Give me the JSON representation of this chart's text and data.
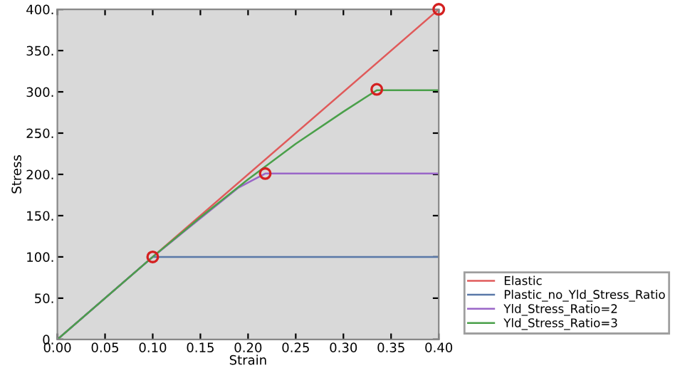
{
  "chart_data": {
    "type": "line",
    "xlabel": "Strain",
    "ylabel": "Stress",
    "series": [
      {
        "name": "Elastic",
        "color": "#e05a5a",
        "x": [
          0,
          0.4
        ],
        "values": [
          0,
          400
        ]
      },
      {
        "name": "Plastic_no_Yld_Stress_Ratio",
        "color": "#5a78a8",
        "x": [
          0,
          0.1,
          0.4
        ],
        "values": [
          0,
          100,
          100
        ]
      },
      {
        "name": "Yld_Stress_Ratio=2",
        "color": "#9a66c8",
        "x": [
          0,
          0.1,
          0.19,
          0.218,
          0.4
        ],
        "values": [
          0,
          100,
          184,
          201,
          201
        ]
      },
      {
        "name": "Yld_Stress_Ratio=3",
        "color": "#4aa04a",
        "x": [
          0,
          0.1,
          0.15,
          0.2,
          0.25,
          0.3,
          0.335,
          0.4
        ],
        "values": [
          0,
          100,
          148,
          194,
          237,
          276,
          302,
          302
        ]
      },
      {
        "type": "scatter",
        "marker": "circle",
        "color": "#d42020",
        "x": [
          0.1,
          0.218,
          0.335,
          0.4
        ],
        "values": [
          100,
          201,
          303,
          400
        ]
      }
    ],
    "xlim": [
      0,
      0.4
    ],
    "ylim": [
      0,
      400
    ],
    "xticks": [
      {
        "value": 0,
        "label": "0.00"
      },
      {
        "value": 0.05,
        "label": "0.05"
      },
      {
        "value": 0.1,
        "label": "0.10"
      },
      {
        "value": 0.15,
        "label": "0.15"
      },
      {
        "value": 0.2,
        "label": "0.20"
      },
      {
        "value": 0.25,
        "label": "0.25"
      },
      {
        "value": 0.3,
        "label": "0.30"
      },
      {
        "value": 0.35,
        "label": "0.35"
      },
      {
        "value": 0.4,
        "label": "0.40"
      }
    ],
    "yticks": [
      {
        "value": 0,
        "label": "0."
      },
      {
        "value": 50,
        "label": "50."
      },
      {
        "value": 100,
        "label": "100."
      },
      {
        "value": 150,
        "label": "150."
      },
      {
        "value": 200,
        "label": "200."
      },
      {
        "value": 250,
        "label": "250."
      },
      {
        "value": 300,
        "label": "300."
      },
      {
        "value": 350,
        "label": "350."
      },
      {
        "value": 400,
        "label": "400."
      }
    ],
    "grid": false,
    "legend": "bottom right"
  }
}
